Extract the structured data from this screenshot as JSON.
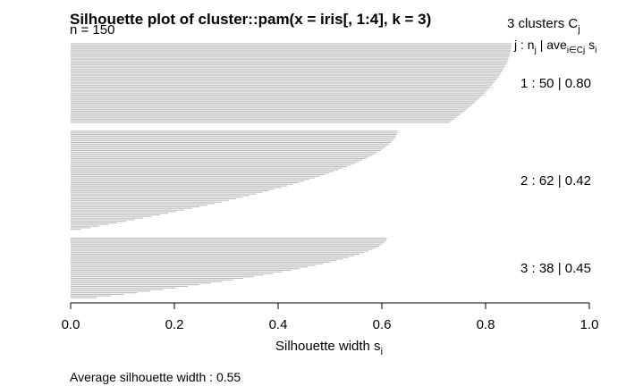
{
  "chart_data": {
    "type": "bar",
    "orientation": "horizontal",
    "title": "Silhouette plot of cluster::pam(x = iris[, 1:4], k = 3)",
    "n_label": "n = 150",
    "header": {
      "count_text": "3  clusters  C",
      "count_sub": "j",
      "j_text": "j :  n",
      "j_sub": "j",
      "sep_text": " | ave",
      "ave_sub": "i∈Cj",
      "s_text": "  s",
      "s_sub": "i"
    },
    "xlabel": "Silhouette width s",
    "xlabel_sub": "i",
    "xlim": [
      0,
      1
    ],
    "xticks": [
      "0.0",
      "0.2",
      "0.4",
      "0.6",
      "0.8",
      "1.0"
    ],
    "bar_color": "#b8b8b8",
    "clusters": [
      {
        "label": "1 :   50  |  0.80",
        "n": 50,
        "ave": 0.8,
        "max": 0.85,
        "min": 0.73
      },
      {
        "label": "2 :   62  |  0.42",
        "n": 62,
        "ave": 0.42,
        "max": 0.63,
        "min": 0.02
      },
      {
        "label": "3 :   38  |  0.45",
        "n": 38,
        "ave": 0.45,
        "max": 0.61,
        "min": 0.05
      }
    ],
    "footer": "Average silhouette width :  0.55"
  }
}
